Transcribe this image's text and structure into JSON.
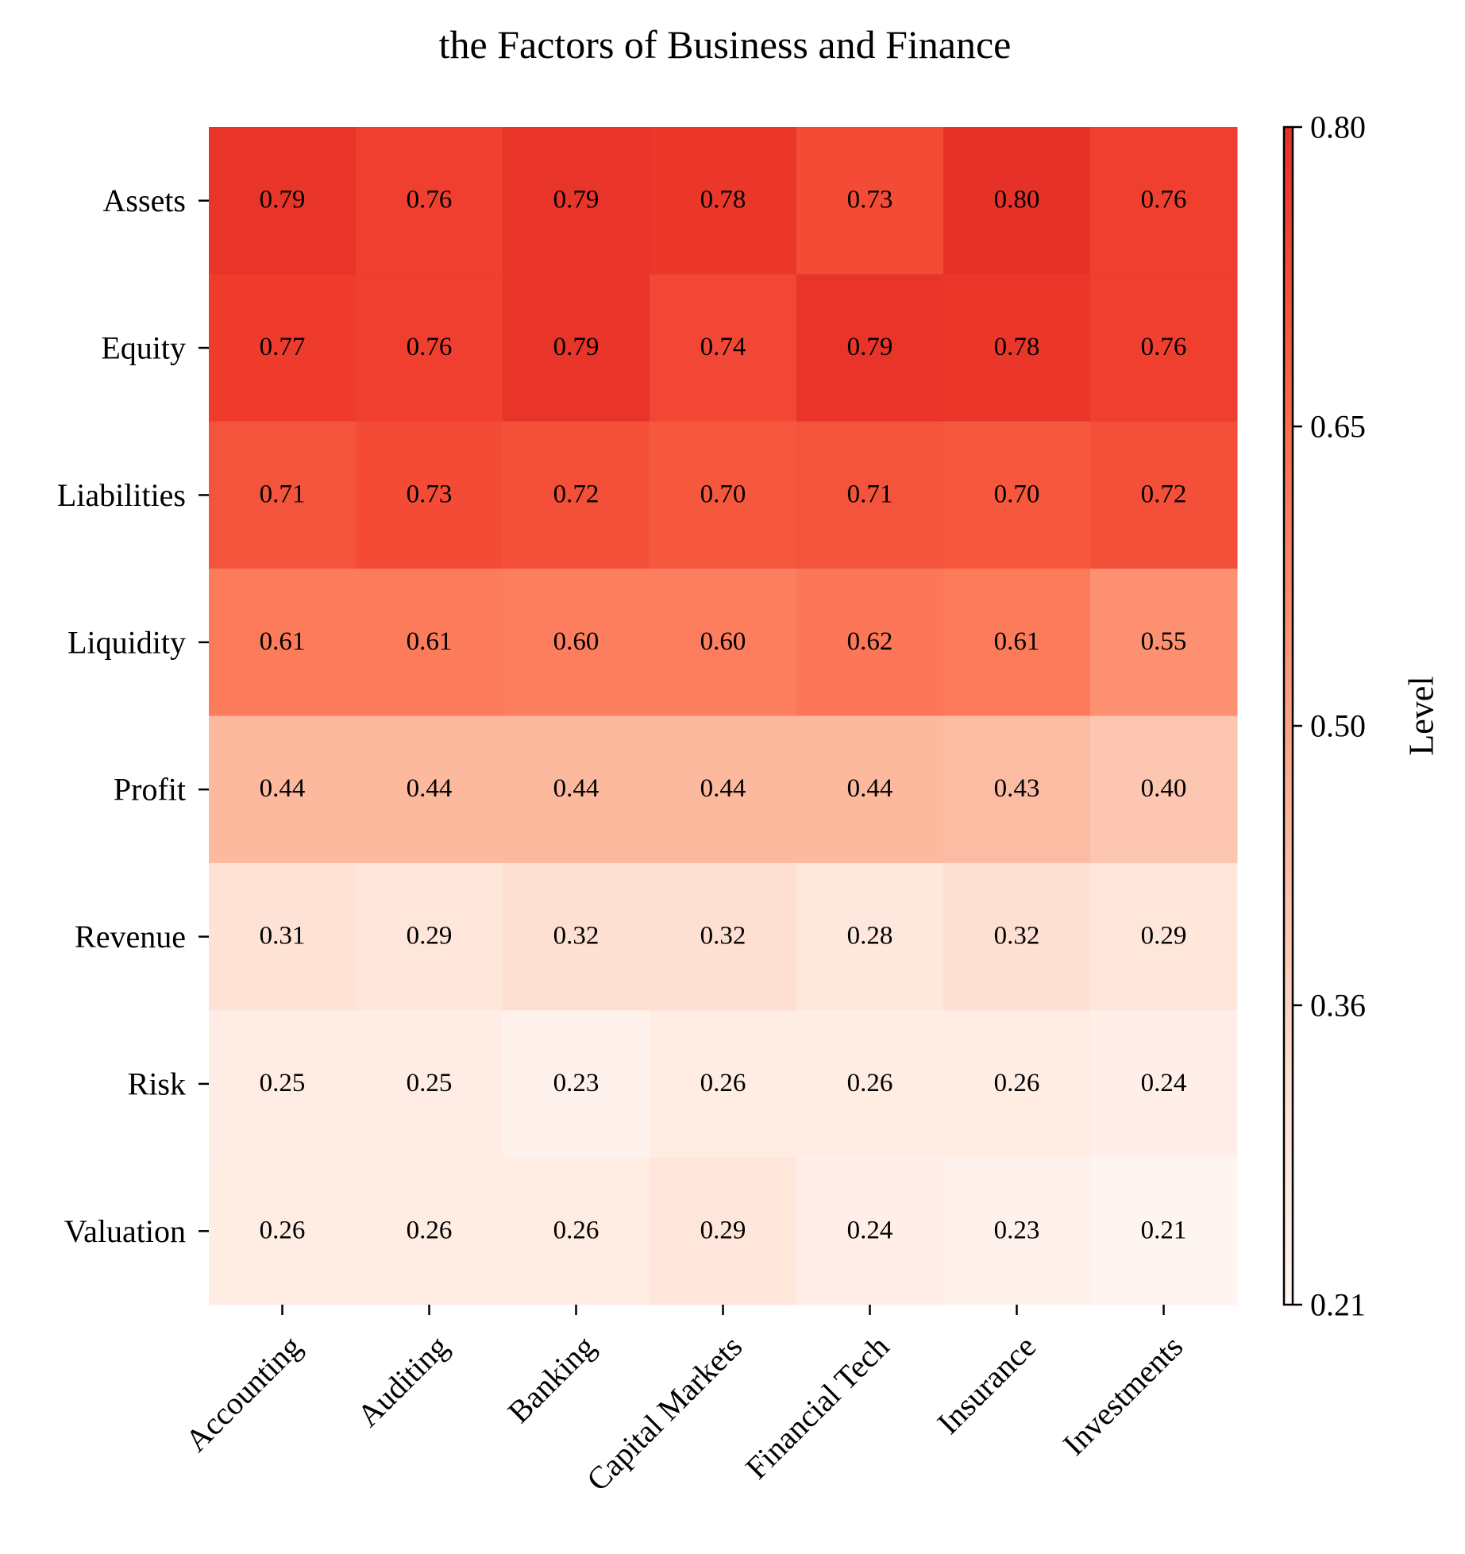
{
  "chart_data": {
    "type": "heatmap",
    "title": "the Factors of Business and Finance",
    "xlabel": "",
    "ylabel": "",
    "columns": [
      "Accounting",
      "Auditing",
      "Banking",
      "Capital Markets",
      "Financial Tech",
      "Insurance",
      "Investments"
    ],
    "rows": [
      "Assets",
      "Equity",
      "Liabilities",
      "Liquidity",
      "Profit",
      "Revenue",
      "Risk",
      "Valuation"
    ],
    "values": [
      [
        0.79,
        0.76,
        0.79,
        0.78,
        0.73,
        0.8,
        0.76
      ],
      [
        0.77,
        0.76,
        0.79,
        0.74,
        0.79,
        0.78,
        0.76
      ],
      [
        0.71,
        0.73,
        0.72,
        0.7,
        0.71,
        0.7,
        0.72
      ],
      [
        0.61,
        0.61,
        0.6,
        0.6,
        0.62,
        0.61,
        0.55
      ],
      [
        0.44,
        0.44,
        0.44,
        0.44,
        0.44,
        0.43,
        0.4
      ],
      [
        0.31,
        0.29,
        0.32,
        0.32,
        0.28,
        0.32,
        0.29
      ],
      [
        0.25,
        0.25,
        0.23,
        0.26,
        0.26,
        0.26,
        0.24
      ],
      [
        0.26,
        0.26,
        0.26,
        0.29,
        0.24,
        0.23,
        0.21
      ]
    ],
    "colorbar": {
      "label": "Level",
      "min": 0.21,
      "max": 0.8,
      "ticks": [
        "0.21",
        "0.36",
        "0.50",
        "0.65",
        "0.80"
      ]
    },
    "colormap": "Reds",
    "cell_label_format": "2 decimals",
    "colors": {
      "low": "#fff5f0",
      "high": "#e0301e"
    }
  }
}
